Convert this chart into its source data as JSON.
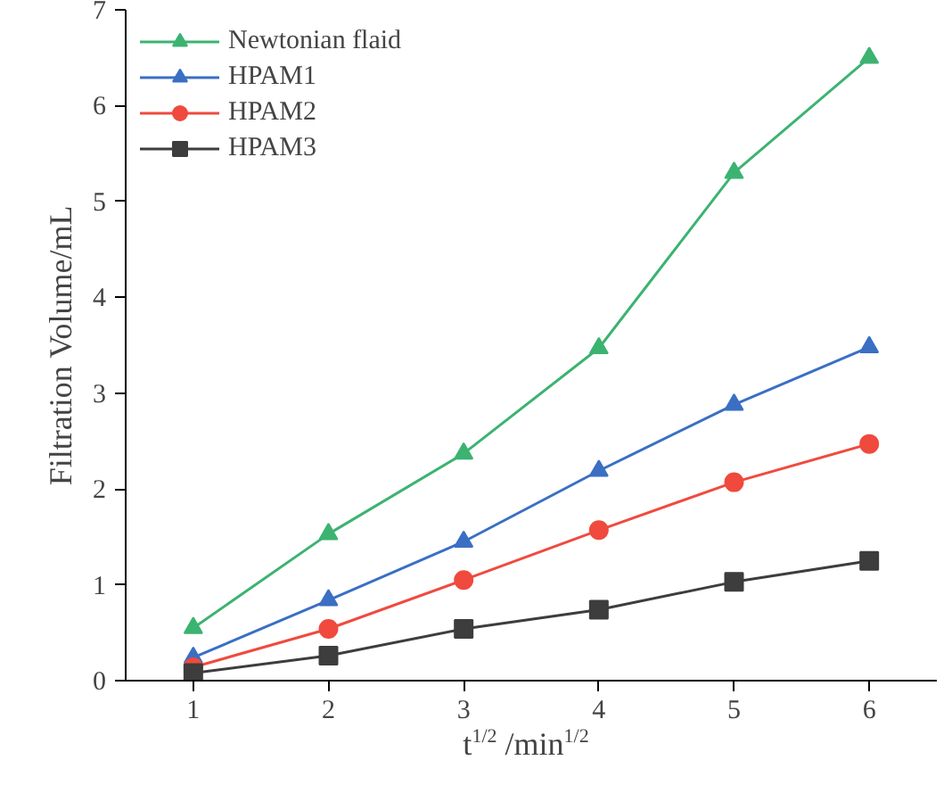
{
  "chart_data": {
    "type": "line",
    "xlabel": "t$^{1/2}$ /min$^{1/2}$",
    "ylabel": "Filtration Volume/mL",
    "x": [
      1,
      2,
      3,
      4,
      5,
      6
    ],
    "xlim": [
      0.5,
      6.5
    ],
    "xticks": [
      1,
      2,
      3,
      4,
      5,
      6
    ],
    "ylim": [
      0,
      7
    ],
    "yticks": [
      0,
      1,
      2,
      3,
      4,
      5,
      6,
      7
    ],
    "grid": false,
    "legend": "top left",
    "series": [
      {
        "name": "Newtonian flaid",
        "color": "#3cb371",
        "marker": "triangle",
        "values": [
          0.55,
          1.53,
          2.37,
          3.47,
          5.3,
          6.5
        ]
      },
      {
        "name": "HPAM1",
        "color": "#3a6fc4",
        "marker": "triangle",
        "values": [
          0.24,
          0.84,
          1.45,
          2.19,
          2.88,
          3.48
        ]
      },
      {
        "name": "HPAM2",
        "color": "#f04a3e",
        "marker": "circle",
        "values": [
          0.14,
          0.54,
          1.05,
          1.57,
          2.07,
          2.47
        ]
      },
      {
        "name": "HPAM3",
        "color": "#3d3d3d",
        "marker": "square",
        "values": [
          0.08,
          0.26,
          0.54,
          0.74,
          1.03,
          1.25
        ]
      }
    ]
  }
}
